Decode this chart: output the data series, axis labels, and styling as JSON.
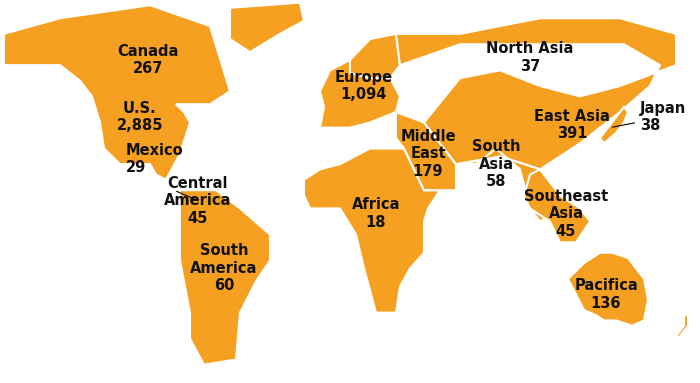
{
  "map_color": "#F5A020",
  "background_color": "#FFFFFF",
  "border_color": "#FFFFFF",
  "text_color": "#111111",
  "label_fontsize": 10.5,
  "label_fontweight": "bold",
  "regions": [
    {
      "name": "Canada",
      "value": "267",
      "lon": -96,
      "lat": 61,
      "ha": "center",
      "va": "center",
      "annotate": false
    },
    {
      "name": "U.S.",
      "value": "2,885",
      "lon": -100,
      "lat": 40,
      "ha": "center",
      "va": "center",
      "annotate": false
    },
    {
      "name": "Mexico",
      "value": "29",
      "lon": -107,
      "lat": 24,
      "ha": "left",
      "va": "center",
      "annotate": false
    },
    {
      "name": "Central\nAmerica",
      "value": "45",
      "lon": -71,
      "lat": 8,
      "ha": "center",
      "va": "center",
      "annotate": true,
      "ann_lon": -83,
      "ann_lat": 12
    },
    {
      "name": "South\nAmerica",
      "value": "60",
      "lon": -56,
      "lat": -18,
      "ha": "center",
      "va": "center",
      "annotate": false
    },
    {
      "name": "Europe",
      "value": "1,094",
      "lon": 12,
      "lat": 52,
      "ha": "center",
      "va": "center",
      "annotate": false
    },
    {
      "name": "Africa",
      "value": "18",
      "lon": 18,
      "lat": 3,
      "ha": "center",
      "va": "center",
      "annotate": false
    },
    {
      "name": "Middle\nEast",
      "value": "179",
      "lon": 44,
      "lat": 26,
      "ha": "center",
      "va": "center",
      "annotate": false
    },
    {
      "name": "North Asia",
      "value": "37",
      "lon": 95,
      "lat": 63,
      "ha": "center",
      "va": "center",
      "annotate": false
    },
    {
      "name": "East Asia",
      "value": "391",
      "lon": 116,
      "lat": 37,
      "ha": "center",
      "va": "center",
      "annotate": false
    },
    {
      "name": "South\nAsia",
      "value": "58",
      "lon": 78,
      "lat": 22,
      "ha": "center",
      "va": "center",
      "annotate": false
    },
    {
      "name": "Southeast\nAsia",
      "value": "45",
      "lon": 113,
      "lat": 3,
      "ha": "center",
      "va": "center",
      "annotate": false
    },
    {
      "name": "Japan",
      "value": "38",
      "lon": 150,
      "lat": 40,
      "ha": "left",
      "va": "center",
      "annotate": true,
      "ann_lon": 135,
      "ann_lat": 36
    },
    {
      "name": "Pacifica",
      "value": "136",
      "lon": 133,
      "lat": -28,
      "ha": "center",
      "va": "center",
      "annotate": false
    }
  ]
}
